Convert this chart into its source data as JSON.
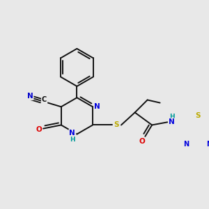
{
  "bg_color": "#e8e8e8",
  "bond_color": "#111111",
  "bond_width": 1.4,
  "atom_colors": {
    "N": "#0000dd",
    "O": "#dd0000",
    "S": "#bbaa00",
    "C": "#111111",
    "H": "#009999",
    "CN_blue": "#0000cc"
  },
  "figsize": [
    3.0,
    3.0
  ],
  "dpi": 100
}
